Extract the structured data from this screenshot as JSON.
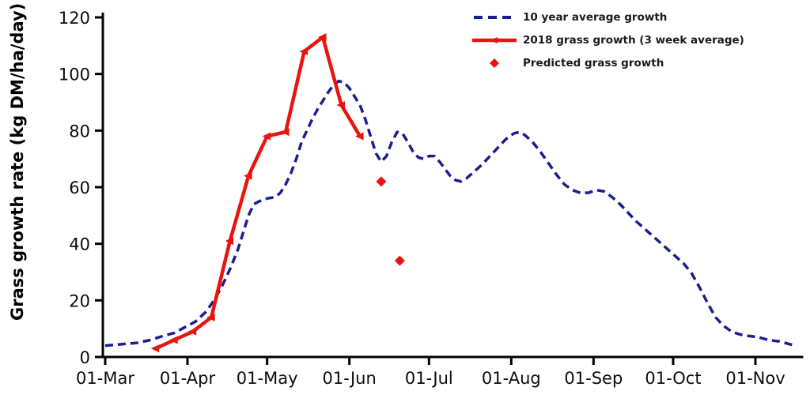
{
  "figure": {
    "background_color": "#ffffff",
    "axis_color": "#000000",
    "accent_blue": "#1d1d90",
    "accent_red": "#e81410"
  },
  "chart_data": {
    "type": "line",
    "title": "",
    "xlabel": "",
    "ylabel": "Grass growth rate (kg DM/ha/day)",
    "ylim": [
      0,
      120
    ],
    "y_ticks": [
      0,
      20,
      40,
      60,
      80,
      100,
      120
    ],
    "x_unit": "days since 01-Mar",
    "x_ticks": [
      {
        "label": "01-Mar",
        "day": 0
      },
      {
        "label": "01-Apr",
        "day": 31
      },
      {
        "label": "01-May",
        "day": 61
      },
      {
        "label": "01-Jun",
        "day": 92
      },
      {
        "label": "01-Jul",
        "day": 122
      },
      {
        "label": "01-Aug",
        "day": 153
      },
      {
        "label": "01-Sep",
        "day": 184
      },
      {
        "label": "01-Oct",
        "day": 214
      },
      {
        "label": "01-Nov",
        "day": 245
      }
    ],
    "grid": false,
    "legend_position": "top-right",
    "series": [
      {
        "name": "10 year average growth",
        "color": "#1d1d90",
        "style": "dashed",
        "marker": "none",
        "points": [
          [
            0,
            4
          ],
          [
            6,
            4.5
          ],
          [
            12,
            5
          ],
          [
            17,
            6
          ],
          [
            22,
            7.5
          ],
          [
            26,
            8.5
          ],
          [
            31,
            11
          ],
          [
            34,
            12.5
          ],
          [
            38,
            16
          ],
          [
            41,
            20
          ],
          [
            44,
            25
          ],
          [
            47,
            31
          ],
          [
            50,
            38
          ],
          [
            52,
            44
          ],
          [
            54,
            50
          ],
          [
            56,
            54
          ],
          [
            58,
            55
          ],
          [
            61,
            56
          ],
          [
            64,
            56.5
          ],
          [
            66,
            58
          ],
          [
            68,
            61
          ],
          [
            70,
            65
          ],
          [
            72,
            70
          ],
          [
            74,
            76
          ],
          [
            76,
            80
          ],
          [
            78,
            84
          ],
          [
            80,
            87.5
          ],
          [
            82,
            90.5
          ],
          [
            84,
            93.5
          ],
          [
            86,
            96
          ],
          [
            88,
            97.5
          ],
          [
            90,
            97
          ],
          [
            92,
            95
          ],
          [
            94,
            92
          ],
          [
            96,
            89
          ],
          [
            98,
            84
          ],
          [
            100,
            78
          ],
          [
            102,
            72
          ],
          [
            104,
            69
          ],
          [
            106,
            71
          ],
          [
            108,
            76
          ],
          [
            110,
            79.5
          ],
          [
            112,
            79
          ],
          [
            114,
            76
          ],
          [
            116,
            72.5
          ],
          [
            118,
            70.5
          ],
          [
            120,
            70
          ],
          [
            122,
            71
          ],
          [
            124,
            71
          ],
          [
            126,
            69
          ],
          [
            128,
            66.5
          ],
          [
            130,
            64
          ],
          [
            132,
            62.5
          ],
          [
            134,
            62
          ],
          [
            136,
            63
          ],
          [
            139,
            65.5
          ],
          [
            142,
            68
          ],
          [
            145,
            71
          ],
          [
            148,
            74
          ],
          [
            151,
            77
          ],
          [
            154,
            79
          ],
          [
            156,
            79.5
          ],
          [
            158,
            78.5
          ],
          [
            161,
            76
          ],
          [
            164,
            72.5
          ],
          [
            167,
            68.5
          ],
          [
            170,
            64.5
          ],
          [
            173,
            61
          ],
          [
            176,
            59
          ],
          [
            179,
            58
          ],
          [
            182,
            58
          ],
          [
            185,
            59
          ],
          [
            188,
            58.5
          ],
          [
            191,
            56.5
          ],
          [
            194,
            54
          ],
          [
            197,
            51
          ],
          [
            200,
            48
          ],
          [
            203,
            45.5
          ],
          [
            206,
            43
          ],
          [
            209,
            40.5
          ],
          [
            212,
            38
          ],
          [
            215,
            35.5
          ],
          [
            218,
            33
          ],
          [
            221,
            29.5
          ],
          [
            224,
            24.5
          ],
          [
            227,
            19
          ],
          [
            230,
            14
          ],
          [
            233,
            11
          ],
          [
            236,
            9
          ],
          [
            239,
            8
          ],
          [
            242,
            7.5
          ],
          [
            246,
            7
          ],
          [
            250,
            6
          ],
          [
            254,
            5.5
          ],
          [
            258,
            4.5
          ],
          [
            260,
            4
          ]
        ]
      },
      {
        "name": "2018 grass growth (3 week average)",
        "color": "#e81410",
        "style": "solid",
        "marker": "triangle",
        "points": [
          {
            "date": "20-Mar",
            "day": 19,
            "value": 3
          },
          {
            "date": "27-Mar",
            "day": 26,
            "value": 6
          },
          {
            "date": "03-Apr",
            "day": 33,
            "value": 9
          },
          {
            "date": "10-Apr",
            "day": 40,
            "value": 14
          },
          {
            "date": "17-Apr",
            "day": 47,
            "value": 41
          },
          {
            "date": "24-Apr",
            "day": 54,
            "value": 64
          },
          {
            "date": "01-May",
            "day": 61,
            "value": 78
          },
          {
            "date": "08-May",
            "day": 68,
            "value": 79.5
          },
          {
            "date": "15-May",
            "day": 75,
            "value": 108
          },
          {
            "date": "22-May",
            "day": 82,
            "value": 113
          },
          {
            "date": "29-May",
            "day": 89,
            "value": 89
          },
          {
            "date": "05-Jun",
            "day": 96,
            "value": 78
          }
        ]
      },
      {
        "name": "Predicted grass growth",
        "color": "#e81410",
        "style": "points",
        "marker": "diamond",
        "points": [
          {
            "date": "13-Jun",
            "day": 104,
            "value": 62
          },
          {
            "date": "20-Jun",
            "day": 111,
            "value": 34
          }
        ]
      }
    ]
  },
  "legend": {
    "items": [
      {
        "label": "10 year average growth"
      },
      {
        "label": "2018 grass growth (3 week average)"
      },
      {
        "label": "Predicted grass growth"
      }
    ]
  }
}
